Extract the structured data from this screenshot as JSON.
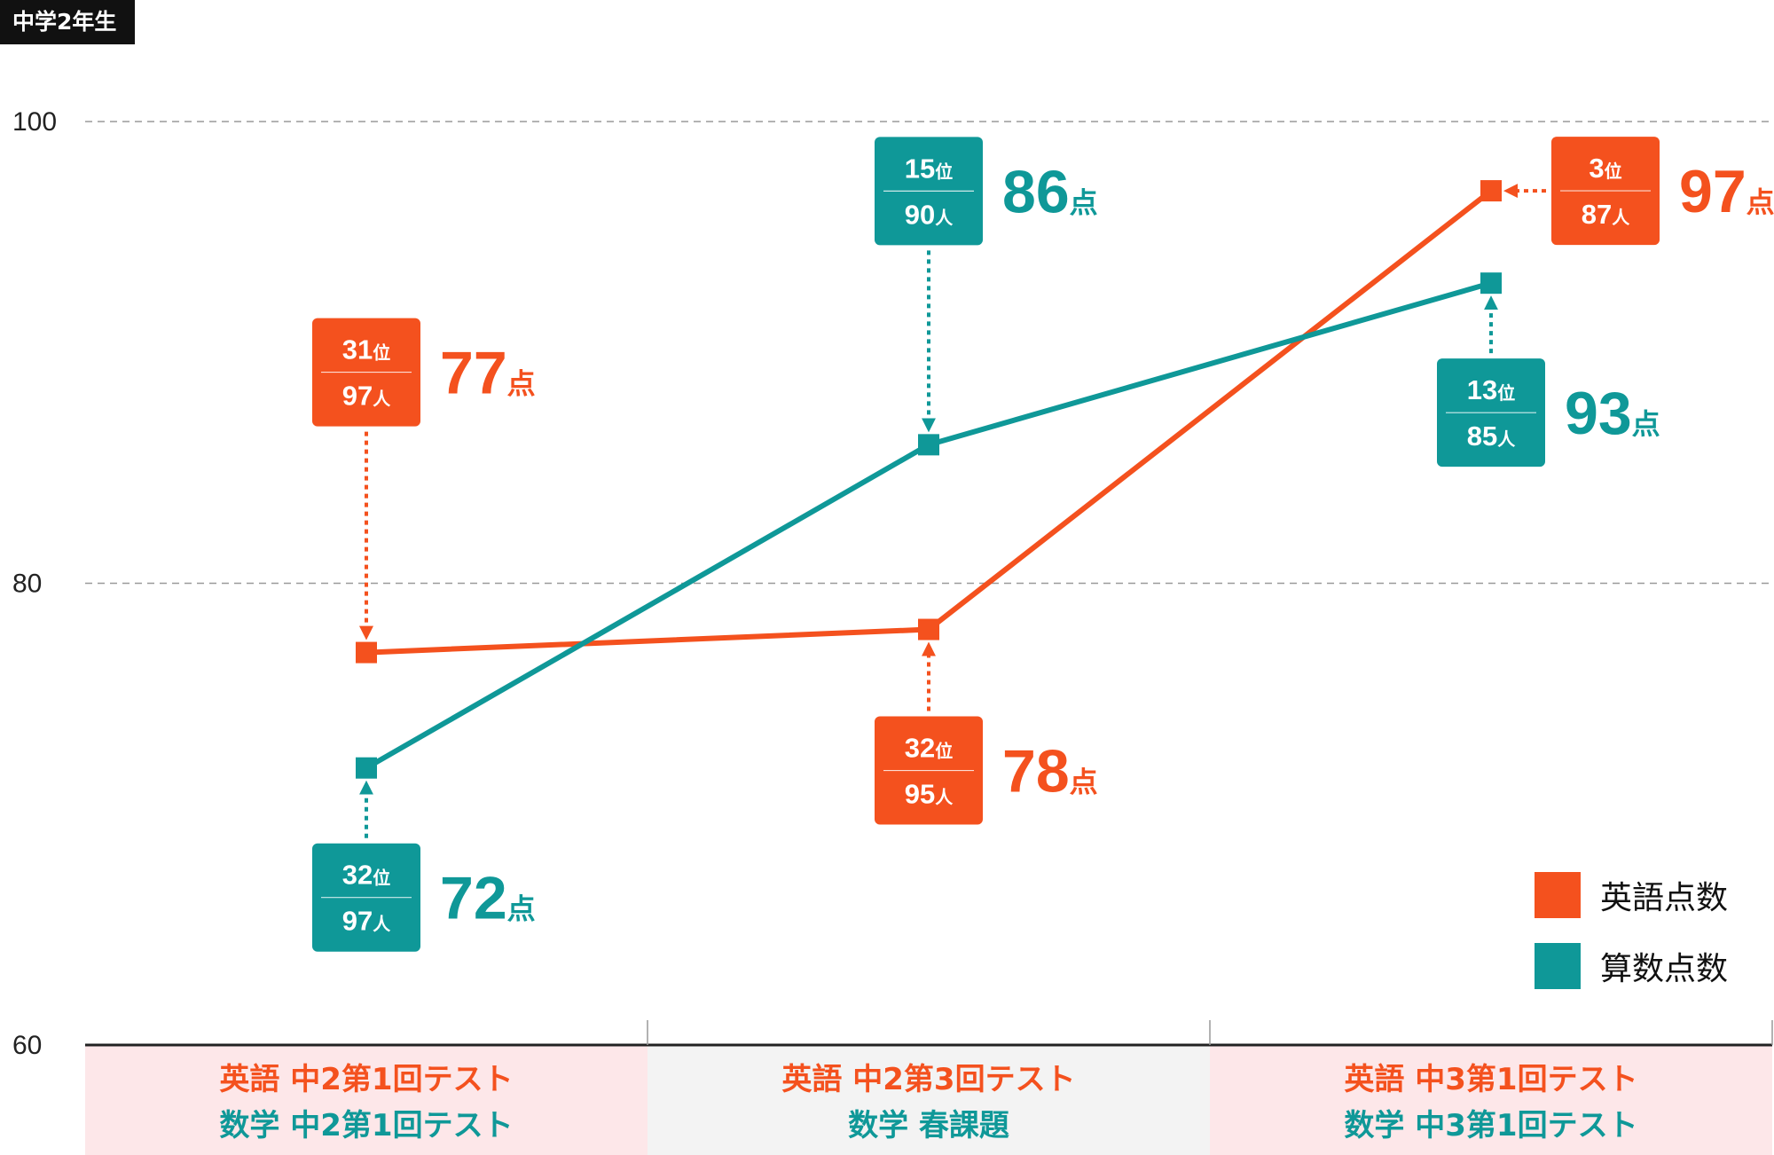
{
  "grade_label": "中学2年生",
  "colors": {
    "english": "#f4511e",
    "math": "#0f9898"
  },
  "chart_data": {
    "type": "line",
    "y_ticks": [
      100,
      80,
      60
    ],
    "ylim": [
      60,
      100
    ],
    "grid": "dashed horizontal",
    "legend_placement": "bottom-right",
    "categories": [
      [
        "英語 中2第1回テスト",
        "数学 中2第1回テスト"
      ],
      [
        "英語 中2第3回テスト",
        "数学 春課題"
      ],
      [
        "英語 中3第1回テスト",
        "数学 中3第1回テスト"
      ]
    ],
    "series": [
      {
        "name": "英語点数",
        "values": [
          77,
          78,
          97
        ],
        "rank": [
          "31",
          "32",
          "3"
        ],
        "people": [
          "97",
          "95",
          "87"
        ],
        "score_text": [
          "77",
          "78",
          "97"
        ]
      },
      {
        "name": "算数点数",
        "values": [
          72,
          86,
          93
        ],
        "rank": [
          "32",
          "15",
          "13"
        ],
        "people": [
          "97",
          "90",
          "85"
        ],
        "score_text": [
          "72",
          "86",
          "93"
        ]
      }
    ],
    "rank_suffix": "位",
    "people_suffix": "人",
    "score_suffix": "点"
  }
}
